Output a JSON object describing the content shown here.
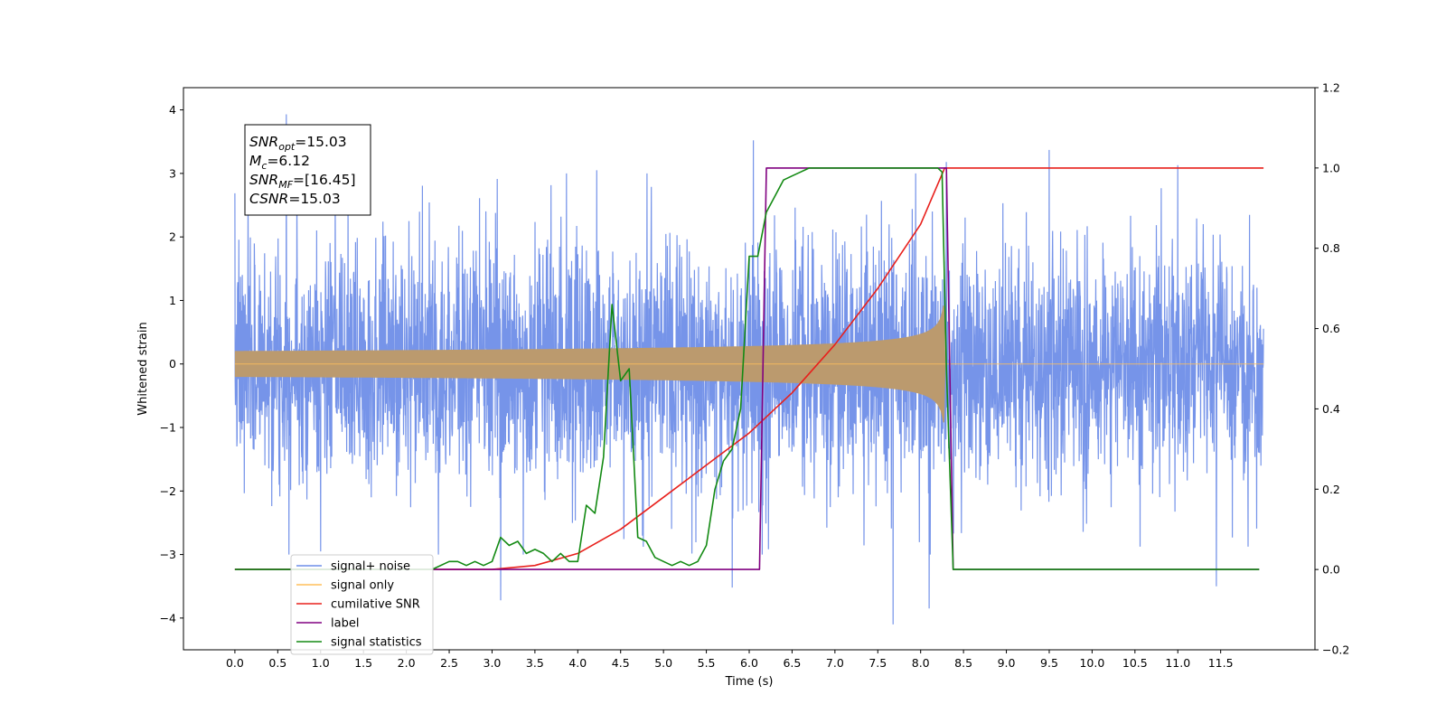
{
  "chart_data": {
    "type": "line",
    "xlabel": "Time (s)",
    "ylabel": "Whitened strain",
    "xlim": [
      -0.6,
      12.6
    ],
    "ylim": [
      -4.5,
      4.35
    ],
    "y2lim": [
      -0.2,
      1.2
    ],
    "x_ticks": [
      0.0,
      0.5,
      1.0,
      1.5,
      2.0,
      2.5,
      3.0,
      3.5,
      4.0,
      4.5,
      5.0,
      5.5,
      6.0,
      6.5,
      7.0,
      7.5,
      8.0,
      8.5,
      9.0,
      9.5,
      10.0,
      10.5,
      11.0,
      11.5
    ],
    "x_tick_labels": [
      "0.0",
      "0.5",
      "1.0",
      "1.5",
      "2.0",
      "2.5",
      "3.0",
      "3.5",
      "4.0",
      "4.5",
      "5.0",
      "5.5",
      "6.0",
      "6.5",
      "7.0",
      "7.5",
      "8.0",
      "8.5",
      "9.0",
      "9.5",
      "10.0",
      "10.5",
      "11.0",
      "11.5"
    ],
    "y_ticks": [
      -4,
      -3,
      -2,
      -1,
      0,
      1,
      2,
      3,
      4
    ],
    "y_tick_labels": [
      "−4",
      "−3",
      "−2",
      "−1",
      "0",
      "1",
      "2",
      "3",
      "4"
    ],
    "y2_ticks": [
      -0.2,
      0.0,
      0.2,
      0.4,
      0.6,
      0.8,
      1.0,
      1.2
    ],
    "y2_tick_labels": [
      "−0.2",
      "0.0",
      "0.2",
      "0.4",
      "0.6",
      "0.8",
      "1.0",
      "1.2"
    ],
    "legend_position": "lower-left",
    "grid": false,
    "annotation": {
      "lines": [
        {
          "main": "SNR",
          "sub": "opt",
          "rest": "=15.03"
        },
        {
          "main": "M",
          "sub": "c",
          "rest": "=6.12"
        },
        {
          "main": "SNR",
          "sub": "MF",
          "rest": "=[16.45]"
        },
        {
          "main": "CSNR",
          "sub": "",
          "rest": "=15.03"
        }
      ]
    },
    "series": [
      {
        "name": "signal+ noise",
        "color": "#6f8ee8",
        "axis": "left",
        "kind": "noise",
        "t_range": [
          0.0,
          12.0
        ],
        "std": 0.9,
        "seed": 7,
        "spikes": [
          [
            0.6,
            3.93
          ],
          [
            1.0,
            -2.95
          ],
          [
            3.1,
            -3.72
          ],
          [
            6.05,
            3.52
          ],
          [
            5.8,
            -3.52
          ],
          [
            7.68,
            -4.1
          ],
          [
            8.1,
            -3.85
          ],
          [
            9.5,
            3.37
          ],
          [
            11.45,
            -3.5
          ],
          [
            11.0,
            3.13
          ],
          [
            8.3,
            3.18
          ],
          [
            4.22,
            3.05
          ]
        ]
      },
      {
        "name": "signal only",
        "color": "#ffbf5a",
        "axis": "left",
        "kind": "chirp",
        "t_range": [
          0.0,
          12.0
        ],
        "merger_time": 8.28,
        "peak_amplitude": 0.92
      },
      {
        "name": "cumilative SNR",
        "color": "#e8201c",
        "axis": "right",
        "x": [
          0.0,
          2.0,
          3.0,
          3.5,
          4.0,
          4.5,
          5.0,
          5.5,
          6.0,
          6.5,
          7.0,
          7.5,
          8.0,
          8.28,
          8.3,
          12.0
        ],
        "y": [
          0.0,
          0.0,
          0.0,
          0.01,
          0.04,
          0.1,
          0.18,
          0.26,
          0.34,
          0.44,
          0.56,
          0.7,
          0.86,
          1.0,
          1.0,
          1.0
        ]
      },
      {
        "name": "label",
        "color": "#800080",
        "axis": "right",
        "x": [
          0.0,
          6.12,
          6.2,
          8.3,
          8.38,
          11.95
        ],
        "y": [
          0.0,
          0.0,
          1.0,
          1.0,
          0.0,
          0.0
        ]
      },
      {
        "name": "signal statistics",
        "color": "#138a13",
        "axis": "right",
        "x": [
          0.0,
          2.3,
          2.5,
          2.6,
          2.7,
          2.8,
          2.9,
          3.0,
          3.1,
          3.2,
          3.3,
          3.4,
          3.5,
          3.6,
          3.7,
          3.8,
          3.9,
          4.0,
          4.1,
          4.2,
          4.3,
          4.4,
          4.5,
          4.6,
          4.7,
          4.8,
          4.9,
          5.0,
          5.1,
          5.2,
          5.3,
          5.4,
          5.5,
          5.6,
          5.7,
          5.8,
          5.9,
          6.0,
          6.1,
          6.2,
          6.3,
          6.4,
          6.5,
          6.6,
          6.7,
          6.8,
          7.0,
          7.5,
          8.0,
          8.2,
          8.25,
          8.3,
          8.38,
          9.0,
          11.95
        ],
        "y": [
          0.0,
          0.0,
          0.02,
          0.02,
          0.01,
          0.02,
          0.01,
          0.02,
          0.08,
          0.06,
          0.07,
          0.04,
          0.05,
          0.04,
          0.02,
          0.04,
          0.02,
          0.02,
          0.16,
          0.14,
          0.28,
          0.66,
          0.47,
          0.5,
          0.08,
          0.07,
          0.03,
          0.02,
          0.01,
          0.02,
          0.01,
          0.02,
          0.06,
          0.2,
          0.27,
          0.3,
          0.4,
          0.78,
          0.78,
          0.89,
          0.93,
          0.97,
          0.98,
          0.99,
          1.0,
          1.0,
          1.0,
          1.0,
          1.0,
          1.0,
          0.99,
          0.5,
          0.0,
          0.0,
          0.0
        ]
      }
    ]
  }
}
